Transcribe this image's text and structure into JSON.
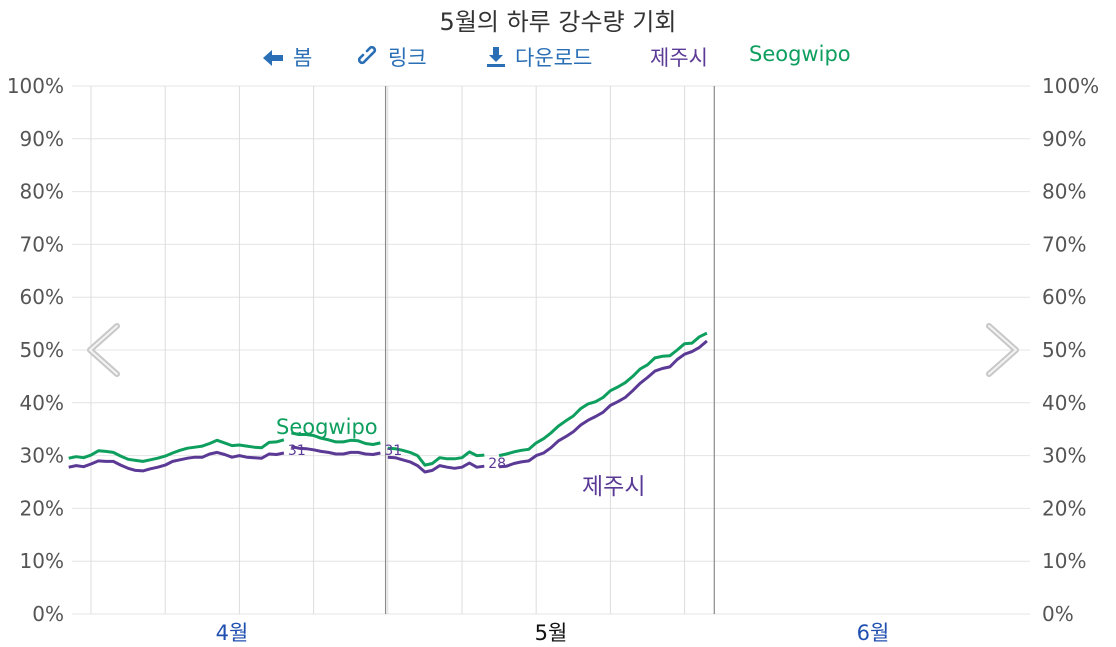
{
  "title": "5월의 하루 강수량 기회",
  "toolbar": {
    "spring_label": "봄",
    "spring_icon": "arrow-left-icon",
    "link_label": "링크",
    "link_icon": "link-icon",
    "download_label": "다운로드",
    "download_icon": "download-icon"
  },
  "nav": {
    "prev_icon": "chevron-left-icon",
    "next_icon": "chevron-right-icon"
  },
  "colors": {
    "jeju": "#5b3a96",
    "seogwipo": "#0e9f5f",
    "accent": "#2a6fb6",
    "current_month": "#111111",
    "other_month": "#1f4fb0"
  },
  "chart_data": {
    "type": "line",
    "ylim": [
      0,
      100
    ],
    "y_ticks": [
      "0%",
      "10%",
      "20%",
      "30%",
      "40%",
      "50%",
      "60%",
      "70%",
      "80%",
      "90%",
      "100%"
    ],
    "x_labels": [
      "4월",
      "5월",
      "6월"
    ],
    "current_month": "5월",
    "series": [
      {
        "name": "제주시",
        "segments": [
          [
            [
              -3,
              27.8
            ],
            [
              -2,
              28.1
            ],
            [
              -1,
              27.9
            ],
            [
              0,
              28.4
            ],
            [
              1,
              29.0
            ],
            [
              2,
              28.9
            ],
            [
              3,
              28.9
            ],
            [
              4,
              28.2
            ],
            [
              5,
              27.6
            ],
            [
              6,
              27.2
            ],
            [
              7,
              27.1
            ],
            [
              8,
              27.5
            ],
            [
              9,
              27.8
            ],
            [
              10,
              28.2
            ],
            [
              11,
              28.9
            ],
            [
              12,
              29.2
            ],
            [
              13,
              29.5
            ],
            [
              14,
              29.7
            ],
            [
              15,
              29.7
            ],
            [
              16,
              30.3
            ],
            [
              17,
              30.6
            ],
            [
              18,
              30.2
            ],
            [
              19,
              29.7
            ],
            [
              20,
              30.0
            ],
            [
              21,
              29.7
            ],
            [
              22,
              29.6
            ],
            [
              23,
              29.5
            ],
            [
              24,
              30.3
            ],
            [
              25,
              30.2
            ],
            [
              26,
              30.5
            ]
          ],
          [
            [
              27,
              31.7
            ],
            [
              28,
              31.4
            ],
            [
              29,
              31.3
            ],
            [
              30,
              31.1
            ],
            [
              31,
              30.8
            ],
            [
              32,
              30.6
            ],
            [
              33,
              30.3
            ],
            [
              34,
              30.3
            ],
            [
              35,
              30.6
            ],
            [
              36,
              30.6
            ],
            [
              37,
              30.3
            ],
            [
              38,
              30.2
            ],
            [
              39,
              30.5
            ]
          ],
          [
            [
              40,
              29.7
            ],
            [
              41,
              29.6
            ],
            [
              42,
              29.2
            ],
            [
              43,
              28.8
            ],
            [
              44,
              28.1
            ],
            [
              45,
              26.9
            ],
            [
              46,
              27.2
            ],
            [
              47,
              28.1
            ],
            [
              48,
              27.8
            ],
            [
              49,
              27.6
            ],
            [
              50,
              27.8
            ],
            [
              51,
              28.6
            ],
            [
              52,
              27.8
            ],
            [
              53,
              28.0
            ]
          ],
          [
            [
              55,
              27.9
            ],
            [
              56,
              28.0
            ],
            [
              57,
              28.5
            ],
            [
              58,
              28.8
            ],
            [
              59,
              29.0
            ],
            [
              60,
              30.0
            ],
            [
              61,
              30.5
            ],
            [
              62,
              31.5
            ],
            [
              63,
              32.8
            ],
            [
              64,
              33.6
            ],
            [
              65,
              34.5
            ],
            [
              66,
              35.8
            ],
            [
              67,
              36.7
            ],
            [
              68,
              37.4
            ],
            [
              69,
              38.2
            ],
            [
              70,
              39.5
            ],
            [
              71,
              40.2
            ],
            [
              72,
              41.0
            ],
            [
              73,
              42.3
            ],
            [
              74,
              43.7
            ],
            [
              75,
              44.8
            ],
            [
              76,
              46.0
            ],
            [
              77,
              46.5
            ],
            [
              78,
              46.8
            ],
            [
              79,
              48.2
            ],
            [
              80,
              49.2
            ],
            [
              81,
              49.7
            ],
            [
              82,
              50.5
            ],
            [
              83,
              51.7
            ]
          ]
        ],
        "segment_end_labels": [
          "31",
          "31",
          "28"
        ]
      },
      {
        "name": "Seogwipo",
        "segments": [
          [
            [
              -3,
              29.5
            ],
            [
              -2,
              29.8
            ],
            [
              -1,
              29.6
            ],
            [
              0,
              30.1
            ],
            [
              1,
              30.9
            ],
            [
              2,
              30.8
            ],
            [
              3,
              30.6
            ],
            [
              4,
              29.9
            ],
            [
              5,
              29.3
            ],
            [
              6,
              29.1
            ],
            [
              7,
              28.9
            ],
            [
              8,
              29.2
            ],
            [
              9,
              29.5
            ],
            [
              10,
              29.9
            ],
            [
              11,
              30.5
            ],
            [
              12,
              31.0
            ],
            [
              13,
              31.4
            ],
            [
              14,
              31.6
            ],
            [
              15,
              31.8
            ],
            [
              16,
              32.3
            ],
            [
              17,
              32.9
            ],
            [
              18,
              32.4
            ],
            [
              19,
              31.9
            ],
            [
              20,
              32.0
            ],
            [
              21,
              31.8
            ],
            [
              22,
              31.6
            ],
            [
              23,
              31.5
            ],
            [
              24,
              32.5
            ],
            [
              25,
              32.6
            ],
            [
              26,
              33.0
            ]
          ],
          [
            [
              27,
              34.3
            ],
            [
              28,
              34.0
            ],
            [
              29,
              34.0
            ],
            [
              30,
              33.8
            ],
            [
              31,
              33.3
            ],
            [
              32,
              33.0
            ],
            [
              33,
              32.6
            ],
            [
              34,
              32.6
            ],
            [
              35,
              32.9
            ],
            [
              36,
              32.8
            ],
            [
              37,
              32.3
            ],
            [
              38,
              32.1
            ],
            [
              39,
              32.4
            ]
          ],
          [
            [
              40,
              31.4
            ],
            [
              41,
              31.3
            ],
            [
              42,
              31.0
            ],
            [
              43,
              30.6
            ],
            [
              44,
              30.0
            ],
            [
              45,
              28.2
            ],
            [
              46,
              28.5
            ],
            [
              47,
              29.6
            ],
            [
              48,
              29.4
            ],
            [
              49,
              29.4
            ],
            [
              50,
              29.6
            ],
            [
              51,
              30.7
            ],
            [
              52,
              30.0
            ],
            [
              53,
              30.1
            ]
          ],
          [
            [
              55,
              30.0
            ],
            [
              56,
              30.3
            ],
            [
              57,
              30.7
            ],
            [
              58,
              31.0
            ],
            [
              59,
              31.2
            ],
            [
              60,
              32.4
            ],
            [
              61,
              33.2
            ],
            [
              62,
              34.3
            ],
            [
              63,
              35.6
            ],
            [
              64,
              36.6
            ],
            [
              65,
              37.5
            ],
            [
              66,
              38.9
            ],
            [
              67,
              39.8
            ],
            [
              68,
              40.2
            ],
            [
              69,
              41.0
            ],
            [
              70,
              42.3
            ],
            [
              71,
              43.0
            ],
            [
              72,
              43.8
            ],
            [
              73,
              45.0
            ],
            [
              74,
              46.4
            ],
            [
              75,
              47.2
            ],
            [
              76,
              48.5
            ],
            [
              77,
              48.8
            ],
            [
              78,
              48.9
            ],
            [
              79,
              50.0
            ],
            [
              80,
              51.2
            ],
            [
              81,
              51.3
            ],
            [
              82,
              52.5
            ],
            [
              83,
              53.2
            ]
          ]
        ]
      }
    ]
  }
}
